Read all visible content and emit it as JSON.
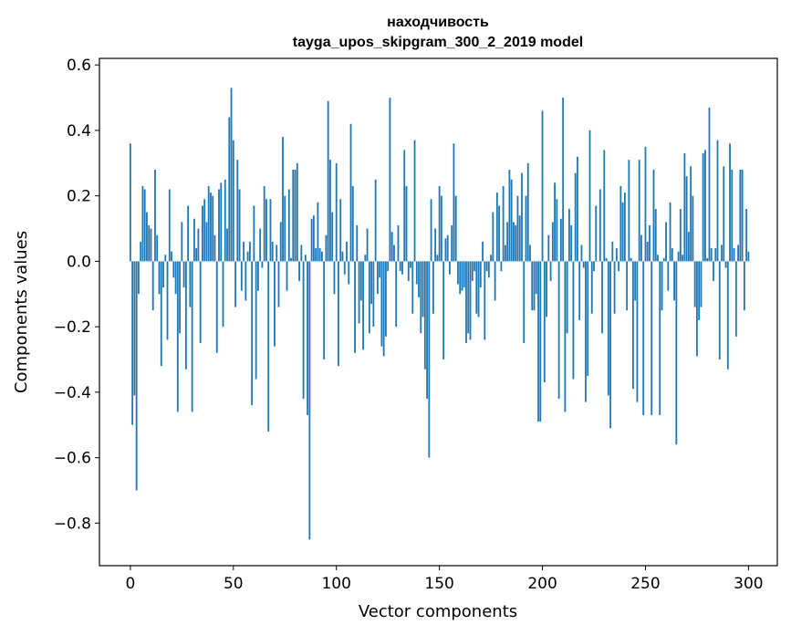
{
  "chart_data": {
    "type": "bar",
    "title_line1": "находчивость",
    "title_line2": "tayga_upos_skipgram_300_2_2019 model",
    "xlabel": "Vector components",
    "ylabel": "Components values",
    "xlim": [
      -15,
      314
    ],
    "ylim": [
      -0.93,
      0.62
    ],
    "xticks": [
      0,
      50,
      100,
      150,
      200,
      250,
      300
    ],
    "xtick_labels": [
      "0",
      "50",
      "100",
      "150",
      "200",
      "250",
      "300"
    ],
    "yticks": [
      -0.8,
      -0.6,
      -0.4,
      -0.2,
      0.0,
      0.2,
      0.4,
      0.6
    ],
    "ytick_labels": [
      "−0.8",
      "−0.6",
      "−0.4",
      "−0.2",
      "0.0",
      "0.2",
      "0.4",
      "0.6"
    ],
    "bar_color": "#1f77b4",
    "values": [
      0.36,
      -0.5,
      -0.41,
      -0.7,
      -0.1,
      0.06,
      0.23,
      0.22,
      0.15,
      0.11,
      0.1,
      -0.15,
      0.28,
      0.08,
      -0.1,
      -0.32,
      -0.08,
      0.02,
      -0.24,
      0.22,
      0.03,
      -0.05,
      -0.1,
      -0.46,
      -0.22,
      0.12,
      -0.08,
      -0.33,
      0.17,
      -0.14,
      -0.46,
      0.13,
      0.04,
      0.1,
      -0.25,
      0.17,
      0.19,
      0.12,
      0.23,
      0.21,
      0.2,
      0.08,
      -0.28,
      0.22,
      0.24,
      -0.2,
      0.25,
      0.1,
      0.44,
      0.53,
      0.37,
      -0.14,
      0.31,
      0.22,
      -0.09,
      0.06,
      -0.12,
      0.03,
      0.06,
      -0.44,
      0.17,
      -0.36,
      -0.09,
      0.1,
      -0.02,
      0.23,
      0.19,
      -0.52,
      0.19,
      0.06,
      -0.26,
      0.05,
      -0.14,
      0.12,
      0.38,
      0.2,
      -0.09,
      0.22,
      0.01,
      0.28,
      0.28,
      0.3,
      -0.06,
      0.05,
      -0.42,
      0.02,
      -0.47,
      -0.85,
      0.13,
      0.14,
      0.04,
      0.18,
      0.04,
      0.03,
      -0.3,
      0.08,
      0.49,
      0.31,
      0.15,
      -0.1,
      0.3,
      -0.32,
      0.19,
      0.03,
      -0.04,
      0.06,
      -0.07,
      0.42,
      0.23,
      -0.28,
      0.11,
      -0.19,
      -0.12,
      -0.27,
      0.02,
      0.1,
      -0.22,
      -0.13,
      -0.2,
      0.25,
      -0.1,
      -0.05,
      -0.26,
      -0.29,
      -0.23,
      -0.03,
      0.5,
      0.09,
      0.05,
      -0.2,
      0.11,
      -0.03,
      -0.04,
      0.34,
      0.23,
      -0.06,
      -0.02,
      -0.16,
      0.37,
      -0.07,
      -0.11,
      -0.22,
      -0.17,
      -0.33,
      -0.42,
      -0.6,
      0.19,
      -0.16,
      0.1,
      0.02,
      0.23,
      0.2,
      -0.3,
      0.07,
      0.08,
      -0.04,
      0.11,
      0.36,
      0.2,
      -0.07,
      -0.1,
      -0.09,
      -0.08,
      -0.25,
      -0.22,
      -0.24,
      -0.06,
      -0.03,
      -0.16,
      -0.17,
      -0.08,
      0.06,
      -0.24,
      -0.03,
      -0.05,
      0.02,
      0.15,
      -0.12,
      0.21,
      0.17,
      -0.03,
      0.23,
      0.05,
      0.12,
      0.28,
      0.25,
      0.12,
      0.11,
      0.2,
      0.14,
      0.27,
      -0.25,
      0.2,
      0.3,
      0.05,
      -0.15,
      -0.15,
      -0.1,
      -0.49,
      -0.49,
      0.46,
      -0.37,
      -0.17,
      0.08,
      -0.06,
      0.12,
      0.24,
      0.19,
      -0.42,
      0.13,
      0.5,
      -0.46,
      -0.22,
      0.16,
      0.11,
      -0.36,
      0.27,
      0.32,
      -0.18,
      0.05,
      -0.02,
      -0.43,
      -0.35,
      0.4,
      -0.16,
      -0.03,
      0.17,
      0.0,
      0.22,
      -0.22,
      0.34,
      0.01,
      -0.41,
      -0.51,
      0.06,
      -0.16,
      0.04,
      -0.03,
      0.23,
      0.18,
      0.21,
      -0.15,
      0.31,
      0.01,
      -0.39,
      -0.12,
      -0.43,
      0.31,
      0.08,
      -0.47,
      0.35,
      0.06,
      0.11,
      -0.47,
      0.28,
      0.16,
      0.02,
      -0.47,
      -0.15,
      0.01,
      0.12,
      -0.09,
      0.18,
      0.04,
      -0.12,
      -0.56,
      0.03,
      0.16,
      0.02,
      0.33,
      0.26,
      0.09,
      0.29,
      0.2,
      -0.14,
      -0.29,
      -0.18,
      -0.14,
      0.33,
      0.34,
      0.01,
      0.47,
      0.04,
      -0.06,
      0.04,
      0.37,
      -0.3,
      0.05,
      0.29,
      -0.02,
      -0.33,
      0.36,
      0.28,
      0.04,
      -0.23,
      0.05,
      0.28,
      0.28,
      -0.15,
      0.16,
      0.03
    ]
  }
}
